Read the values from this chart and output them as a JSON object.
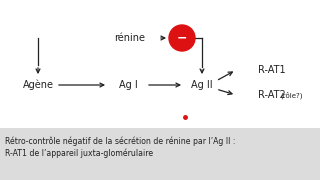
{
  "bg_color": "#ffffff",
  "bottom_bg_color": "#dcdcdc",
  "title_text_line1": "Rétro-contrôle négatif de la sécrétion de rénine par l’Ag II :",
  "title_text_line2": "R-AT1 de l’appareil juxta-glomérulaire",
  "renine_label": "rénine",
  "agene_label": "Agène",
  "agI_label": "Ag I",
  "agII_label": "Ag II",
  "rat1_label": "R-AT1",
  "rat2_label": "R-AT2",
  "rat2_sub": "(rôle?)",
  "minus_label": "−",
  "red_color": "#dd1111",
  "text_color": "#222222",
  "arrow_color": "#222222",
  "font_size_main": 7.0,
  "font_size_small": 5.0,
  "font_size_caption": 5.6,
  "font_size_minus": 9
}
